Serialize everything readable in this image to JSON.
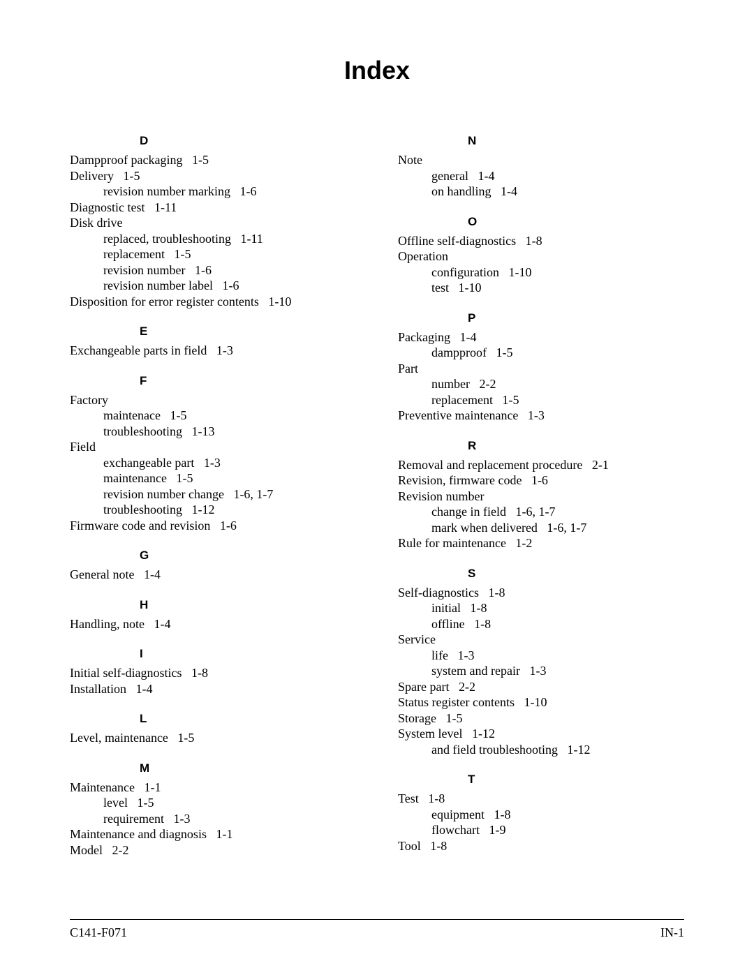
{
  "title": "Index",
  "footer": {
    "left": "C141-F071",
    "right": "IN-1"
  },
  "sections_left": [
    {
      "letter": "D",
      "entries": [
        {
          "text": "Dampproof packaging   1-5"
        },
        {
          "text": "Delivery   1-5"
        },
        {
          "text": "revision number marking   1-6",
          "sub": true
        },
        {
          "text": "Diagnostic test   1-11"
        },
        {
          "text": "Disk drive"
        },
        {
          "text": "replaced, troubleshooting   1-11",
          "sub": true
        },
        {
          "text": "replacement   1-5",
          "sub": true
        },
        {
          "text": "revision number   1-6",
          "sub": true
        },
        {
          "text": "revision number label   1-6",
          "sub": true
        },
        {
          "text": "Disposition for error register contents   1-10"
        }
      ]
    },
    {
      "letter": "E",
      "entries": [
        {
          "text": "Exchangeable parts in field   1-3"
        }
      ]
    },
    {
      "letter": "F",
      "entries": [
        {
          "text": "Factory"
        },
        {
          "text": "maintenace   1-5",
          "sub": true
        },
        {
          "text": "troubleshooting   1-13",
          "sub": true
        },
        {
          "text": "Field"
        },
        {
          "text": "exchangeable part   1-3",
          "sub": true
        },
        {
          "text": "maintenance   1-5",
          "sub": true
        },
        {
          "text": "revision number change   1-6, 1-7",
          "sub": true
        },
        {
          "text": "troubleshooting   1-12",
          "sub": true
        },
        {
          "text": "Firmware code and revision   1-6"
        }
      ]
    },
    {
      "letter": "G",
      "entries": [
        {
          "text": "General note   1-4"
        }
      ]
    },
    {
      "letter": "H",
      "entries": [
        {
          "text": "Handling, note   1-4"
        }
      ]
    },
    {
      "letter": "I",
      "entries": [
        {
          "text": "Initial self-diagnostics   1-8"
        },
        {
          "text": "Installation   1-4"
        }
      ]
    },
    {
      "letter": "L",
      "entries": [
        {
          "text": "Level, maintenance   1-5"
        }
      ]
    },
    {
      "letter": "M",
      "entries": [
        {
          "text": "Maintenance   1-1"
        },
        {
          "text": "level   1-5",
          "sub": true
        },
        {
          "text": "requirement   1-3",
          "sub": true
        },
        {
          "text": "Maintenance and diagnosis   1-1"
        },
        {
          "text": "Model   2-2"
        }
      ]
    }
  ],
  "sections_right": [
    {
      "letter": "N",
      "entries": [
        {
          "text": "Note"
        },
        {
          "text": "general   1-4",
          "sub": true
        },
        {
          "text": "on handling   1-4",
          "sub": true
        }
      ]
    },
    {
      "letter": "O",
      "entries": [
        {
          "text": "Offline self-diagnostics   1-8"
        },
        {
          "text": "Operation"
        },
        {
          "text": "configuration   1-10",
          "sub": true
        },
        {
          "text": "test   1-10",
          "sub": true
        }
      ]
    },
    {
      "letter": "P",
      "entries": [
        {
          "text": "Packaging   1-4"
        },
        {
          "text": "dampproof   1-5",
          "sub": true
        },
        {
          "text": "Part"
        },
        {
          "text": "number   2-2",
          "sub": true
        },
        {
          "text": "replacement   1-5",
          "sub": true
        },
        {
          "text": "Preventive maintenance   1-3"
        }
      ]
    },
    {
      "letter": "R",
      "entries": [
        {
          "text": "Removal and replacement procedure   2-1"
        },
        {
          "text": "Revision, firmware code   1-6"
        },
        {
          "text": "Revision number"
        },
        {
          "text": "change in field   1-6, 1-7",
          "sub": true
        },
        {
          "text": "mark when delivered   1-6, 1-7",
          "sub": true
        },
        {
          "text": "Rule for maintenance   1-2"
        }
      ]
    },
    {
      "letter": "S",
      "entries": [
        {
          "text": "Self-diagnostics   1-8"
        },
        {
          "text": "initial   1-8",
          "sub": true
        },
        {
          "text": "offline   1-8",
          "sub": true
        },
        {
          "text": "Service"
        },
        {
          "text": "life   1-3",
          "sub": true
        },
        {
          "text": "system and repair   1-3",
          "sub": true
        },
        {
          "text": "Spare part   2-2"
        },
        {
          "text": "Status register contents   1-10"
        },
        {
          "text": "Storage   1-5"
        },
        {
          "text": "System level   1-12"
        },
        {
          "text": "and field troubleshooting   1-12",
          "sub": true
        }
      ]
    },
    {
      "letter": "T",
      "entries": [
        {
          "text": "Test   1-8"
        },
        {
          "text": "equipment   1-8",
          "sub": true
        },
        {
          "text": "flowchart   1-9",
          "sub": true
        },
        {
          "text": "Tool   1-8"
        }
      ]
    }
  ]
}
